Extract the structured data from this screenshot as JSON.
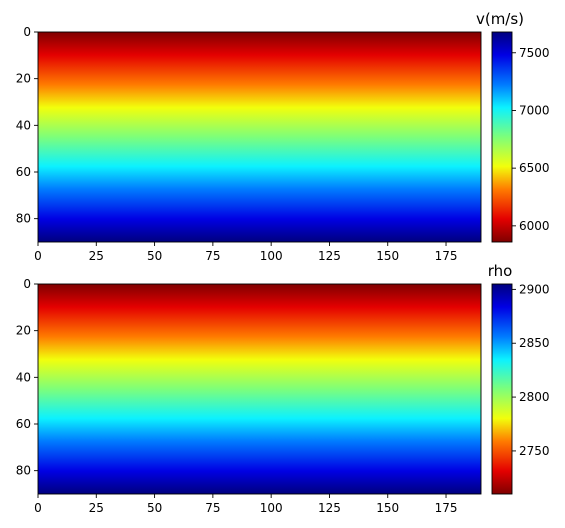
{
  "chart_data": [
    {
      "type": "heatmap",
      "title": "",
      "xlabel": "",
      "ylabel": "",
      "x_ticks": [
        "0",
        "25",
        "50",
        "75",
        "100",
        "125",
        "150",
        "175"
      ],
      "y_ticks": [
        "0",
        "20",
        "40",
        "60",
        "80"
      ],
      "xlim": [
        0,
        190
      ],
      "ylim": [
        90,
        0
      ],
      "colormap": "jet",
      "gradient_direction": "vertical",
      "colorbar": {
        "label": "v(m/s)",
        "ticks": [
          "6000",
          "6500",
          "7000",
          "7500"
        ],
        "range": [
          5860,
          7680
        ]
      },
      "values_description_top": 5860,
      "values_description_bottom": 7680
    },
    {
      "type": "heatmap",
      "title": "",
      "xlabel": "",
      "ylabel": "",
      "x_ticks": [
        "0",
        "25",
        "50",
        "75",
        "100",
        "125",
        "150",
        "175"
      ],
      "y_ticks": [
        "0",
        "20",
        "40",
        "60",
        "80"
      ],
      "xlim": [
        0,
        190
      ],
      "ylim": [
        90,
        0
      ],
      "colormap": "jet",
      "gradient_direction": "vertical",
      "colorbar": {
        "label": "rho",
        "ticks": [
          "2750",
          "2800",
          "2850",
          "2900"
        ],
        "range": [
          2710,
          2905
        ]
      },
      "values_description_top": 2710,
      "values_description_bottom": 2905
    }
  ]
}
